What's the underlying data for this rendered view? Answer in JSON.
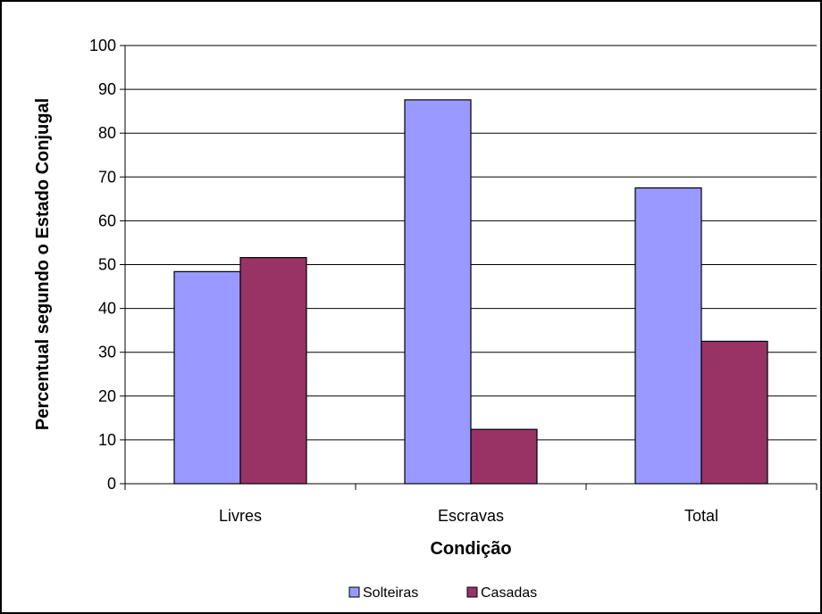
{
  "chart_data": {
    "type": "bar",
    "categories": [
      "Livres",
      "Escravas",
      "Total"
    ],
    "series": [
      {
        "name": "Solteiras",
        "color": "#9999ff",
        "values": [
          48.4,
          87.6,
          67.5
        ]
      },
      {
        "name": "Casadas",
        "color": "#993366",
        "values": [
          51.6,
          12.4,
          32.5
        ]
      }
    ],
    "xlabel": "Condição",
    "ylabel": "Percentual segundo o Estado Conjugal",
    "ylim": [
      0,
      100
    ],
    "yticks": [
      "0",
      "10",
      "20",
      "30",
      "40",
      "50",
      "60",
      "70",
      "80",
      "90",
      "100"
    ],
    "grid": true,
    "legend_position": "bottom"
  }
}
